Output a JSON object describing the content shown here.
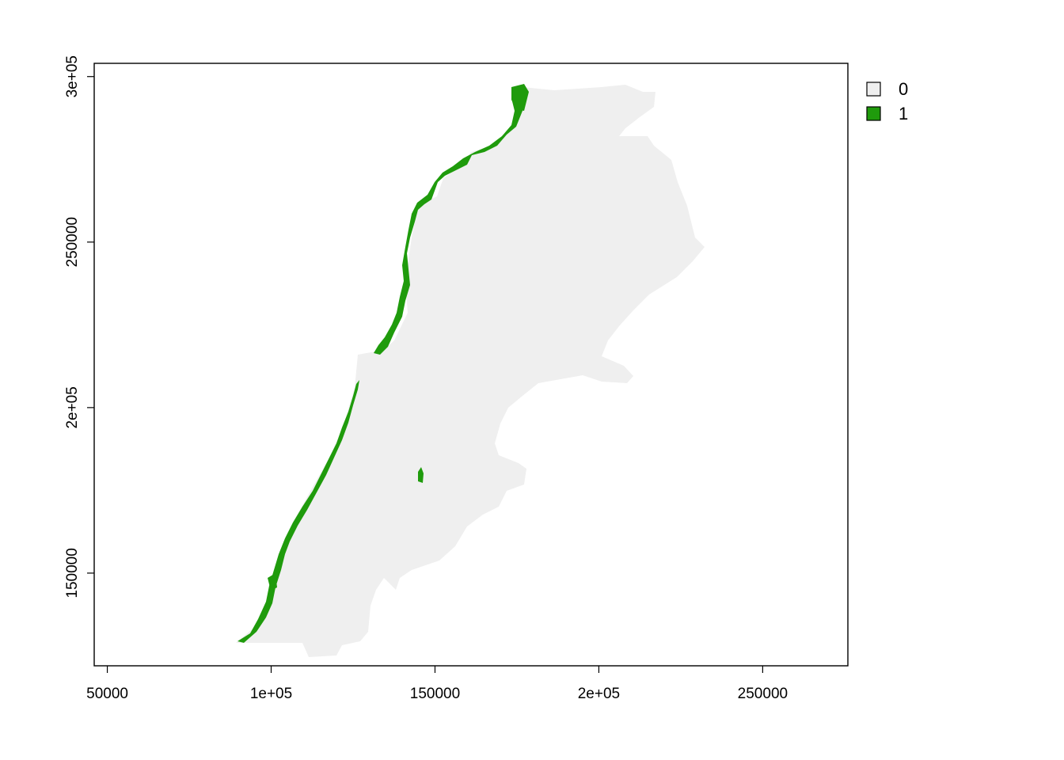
{
  "chart_data": {
    "type": "raster-map",
    "xlim": [
      46000,
      276000
    ],
    "ylim": [
      122000,
      304000
    ],
    "x_ticks": [
      {
        "value": 50000,
        "label": "50000"
      },
      {
        "value": 100000,
        "label": "1e+05"
      },
      {
        "value": 150000,
        "label": "150000"
      },
      {
        "value": 200000,
        "label": "2e+05"
      },
      {
        "value": 250000,
        "label": "250000"
      }
    ],
    "y_ticks": [
      {
        "value": 150000,
        "label": "150000"
      },
      {
        "value": 200000,
        "label": "2e+05"
      },
      {
        "value": 250000,
        "label": "250000"
      },
      {
        "value": 300000,
        "label": "3e+05"
      }
    ],
    "legend": {
      "placement": "top-right, outside plot",
      "entries": [
        {
          "label": "0",
          "color": "#efefef"
        },
        {
          "label": "1",
          "color": "#1f9b0c"
        }
      ]
    },
    "colors": {
      "class_0": "#efefef",
      "class_1": "#1f9b0c",
      "frame": "#000000"
    }
  }
}
